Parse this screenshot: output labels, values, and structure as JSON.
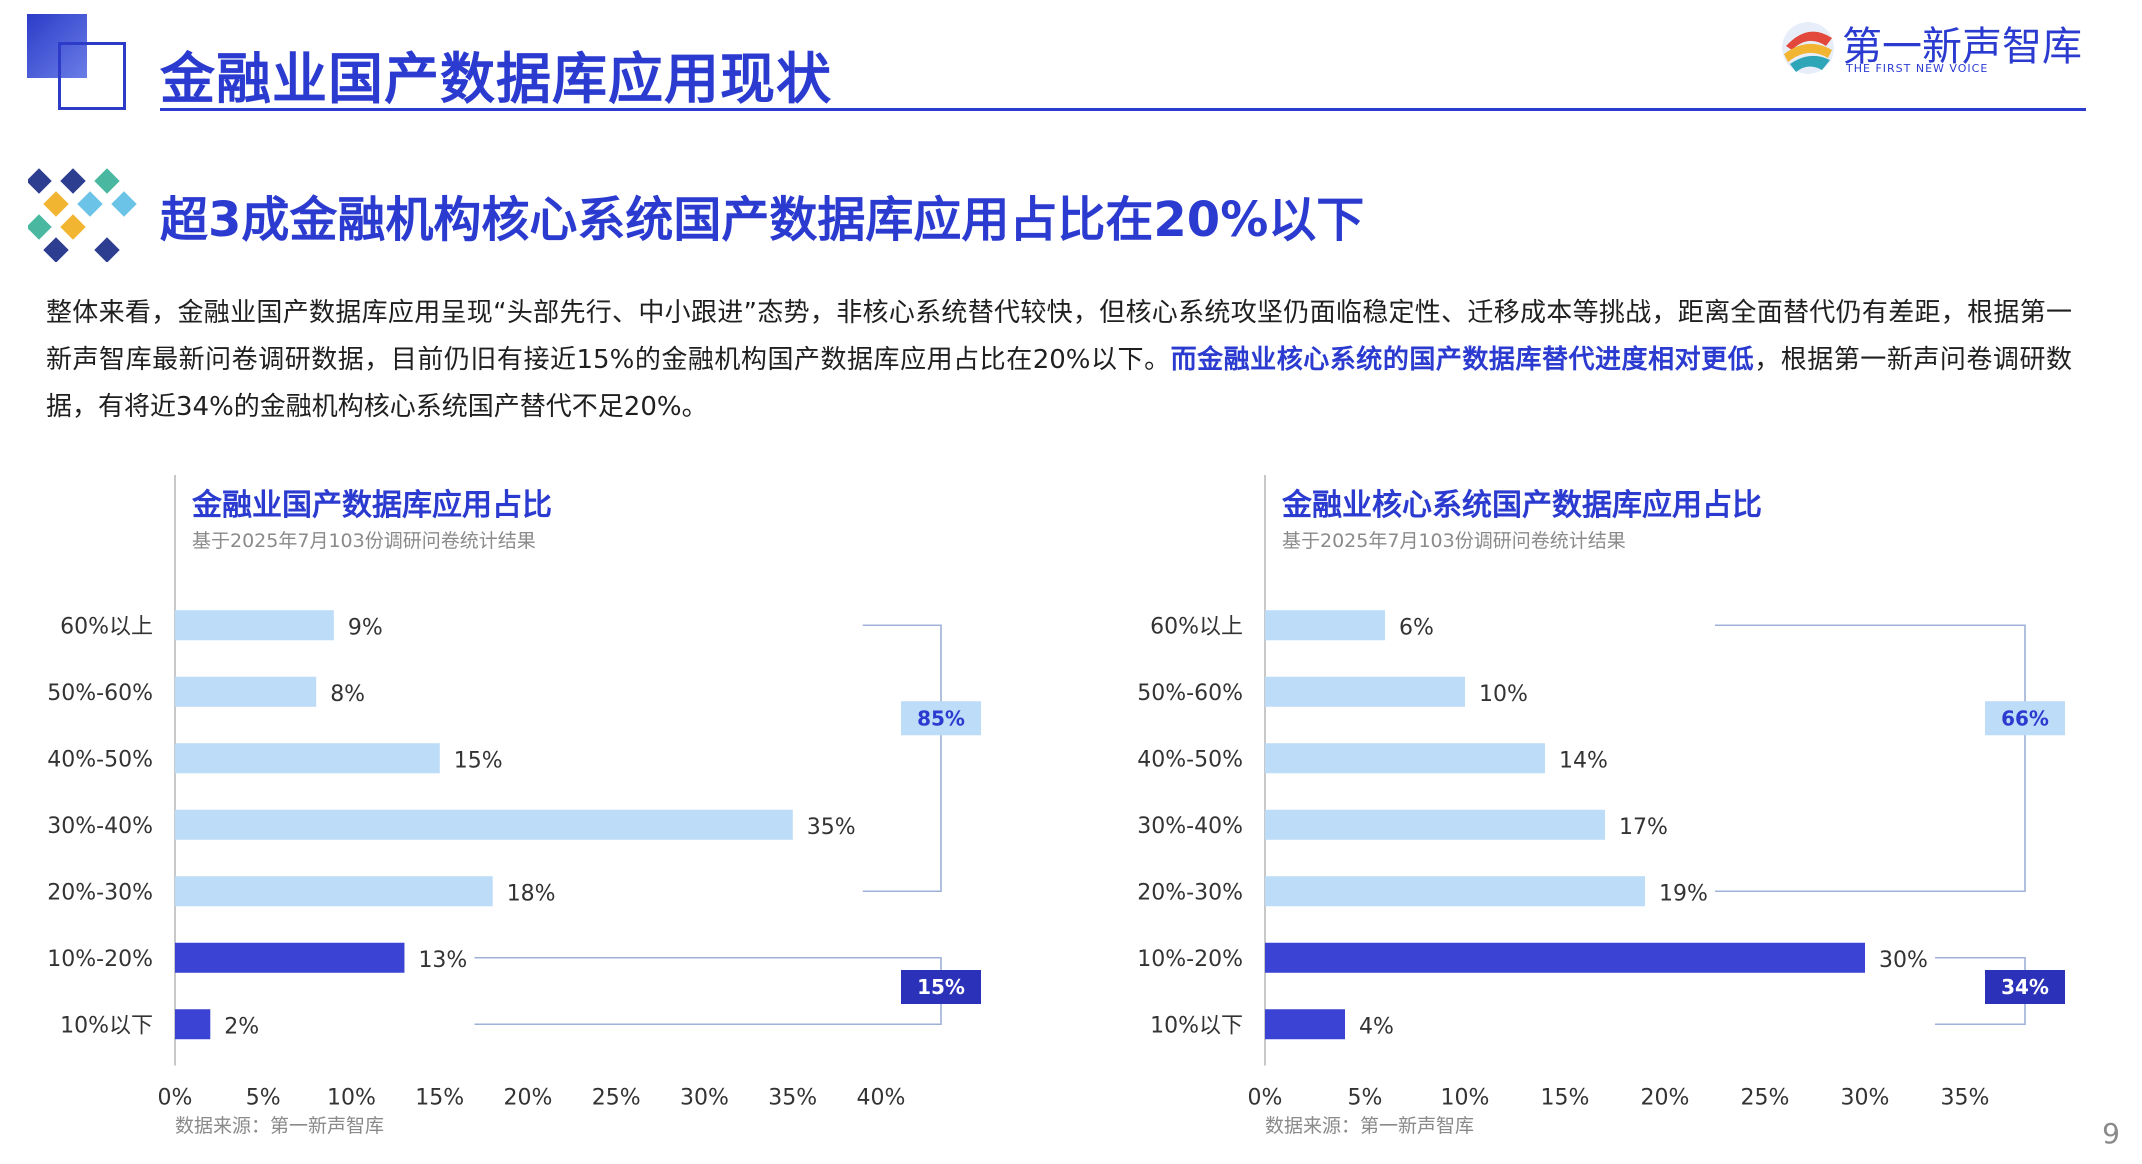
{
  "header": {
    "title": "金融业国产数据库应用现状",
    "logo_text": "第一新声智库",
    "logo_sub": "THE FIRST NEW VOICE"
  },
  "subtitle": "超3成金融机构核心系统国产数据库应用占比在20%以下",
  "body": {
    "text_before": "整体来看，金融业国产数据库应用呈现“头部先行、中小跟进”态势，非核心系统替代较快，但核心系统攻坚仍面临稳定性、迁移成本等挑战，距离全面替代仍有差距，根据第一新声智库最新问卷调研数据，目前仍旧有接近15%的金融机构国产数据库应用占比在20%以下。",
    "highlight": "而金融业核心系统的国产数据库替代进度相对更低",
    "text_after": "，根据第一新声问卷调研数据，有将近34%的金融机构核心系统国产替代不足20%。"
  },
  "chart_data": [
    {
      "type": "bar",
      "orientation": "horizontal",
      "title": "金融业国产数据库应用占比",
      "note": "基于2025年7月103份调研问卷统计结果",
      "categories": [
        "60%以上",
        "50%-60%",
        "40%-50%",
        "30%-40%",
        "20%-30%",
        "10%-20%",
        "10%以下"
      ],
      "values": [
        9,
        8,
        15,
        35,
        18,
        13,
        2
      ],
      "value_labels": [
        "9%",
        "8%",
        "15%",
        "35%",
        "18%",
        "13%",
        "2%"
      ],
      "highlight_categories": [
        "10%-20%",
        "10%以下"
      ],
      "xlim": [
        0,
        40
      ],
      "x_ticks": [
        "0%",
        "5%",
        "10%",
        "15%",
        "20%",
        "25%",
        "30%",
        "35%",
        "40%"
      ],
      "group_totals": [
        {
          "label": "85%",
          "covers": [
            "60%以上",
            "50%-60%",
            "40%-50%",
            "30%-40%",
            "20%-30%"
          ]
        },
        {
          "label": "15%",
          "covers": [
            "10%-20%",
            "10%以下"
          ]
        }
      ],
      "source": "数据来源：第一新声智库",
      "colors": {
        "normal": "#bcdcf8",
        "highlight": "#3a43d3"
      }
    },
    {
      "type": "bar",
      "orientation": "horizontal",
      "title": "金融业核心系统国产数据库应用占比",
      "note": "基于2025年7月103份调研问卷统计结果",
      "categories": [
        "60%以上",
        "50%-60%",
        "40%-50%",
        "30%-40%",
        "20%-30%",
        "10%-20%",
        "10%以下"
      ],
      "values": [
        6,
        10,
        14,
        17,
        19,
        30,
        4
      ],
      "value_labels": [
        "6%",
        "10%",
        "14%",
        "17%",
        "19%",
        "30%",
        "4%"
      ],
      "highlight_categories": [
        "10%-20%",
        "10%以下"
      ],
      "xlim": [
        0,
        35
      ],
      "x_ticks": [
        "0%",
        "5%",
        "10%",
        "15%",
        "20%",
        "25%",
        "30%",
        "35%"
      ],
      "group_totals": [
        {
          "label": "66%",
          "covers": [
            "60%以上",
            "50%-60%",
            "40%-50%",
            "30%-40%",
            "20%-30%"
          ]
        },
        {
          "label": "34%",
          "covers": [
            "10%-20%",
            "10%以下"
          ]
        }
      ],
      "source": "数据来源：第一新声智库",
      "colors": {
        "normal": "#bcdcf8",
        "highlight": "#3a43d3"
      }
    }
  ],
  "page_number": "9"
}
